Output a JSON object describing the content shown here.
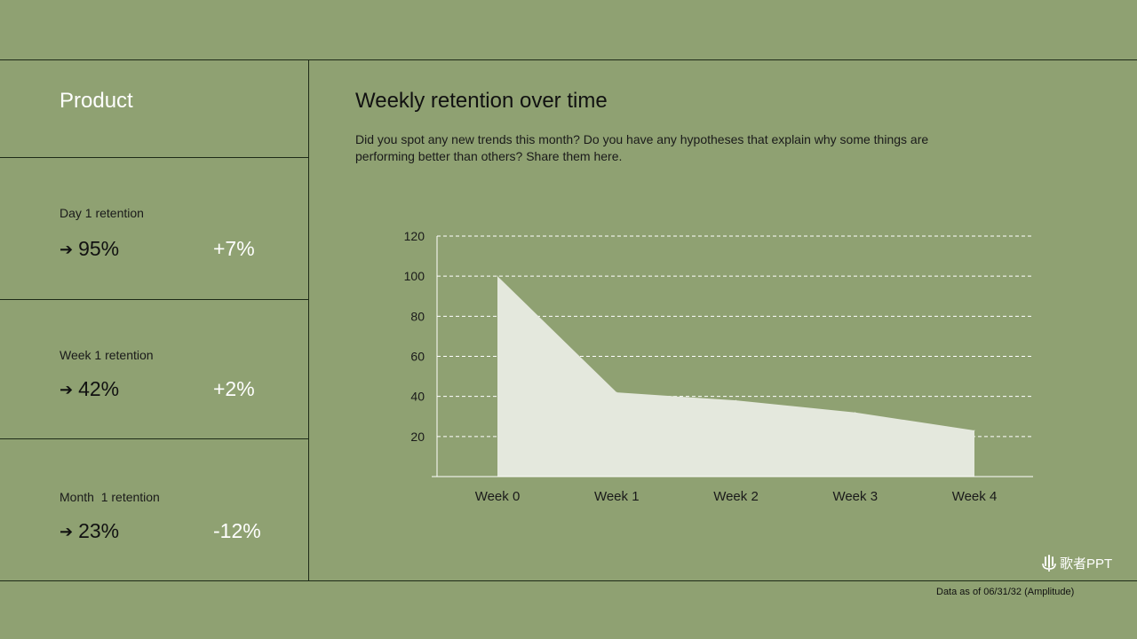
{
  "panel": {
    "title": "Product",
    "metrics": [
      {
        "label": "Day 1 retention",
        "value": "95%",
        "change": "+7%"
      },
      {
        "label": "Week 1 retention",
        "value": "42%",
        "change": "+2%"
      },
      {
        "label": "Month  1 retention",
        "value": "23%",
        "change": "-12%"
      }
    ],
    "arrow_icon": "arrow-right-icon"
  },
  "chart_data": {
    "type": "area",
    "title": "Weekly retention over time",
    "subtitle": "Did you spot any new trends this month? Do you have any hypotheses that explain why some things are performing better than others? Share them here.",
    "categories": [
      "Week 0",
      "Week 1",
      "Week 2",
      "Week 3",
      "Week 4"
    ],
    "values": [
      100,
      42,
      38,
      32,
      23
    ],
    "ylim": [
      0,
      120
    ],
    "yticks": [
      "20",
      "40",
      "60",
      "80",
      "100",
      "120"
    ],
    "grid": true,
    "fill_color": "#e4e8dd",
    "grid_color": "#ffffff"
  },
  "footnote": "Data as of 06/31/32 (Amplitude)",
  "logo": {
    "text": "歌者PPT",
    "icon": "microphone-icon"
  },
  "colors": {
    "background": "#8fa172",
    "lines": "#1e2a17"
  }
}
